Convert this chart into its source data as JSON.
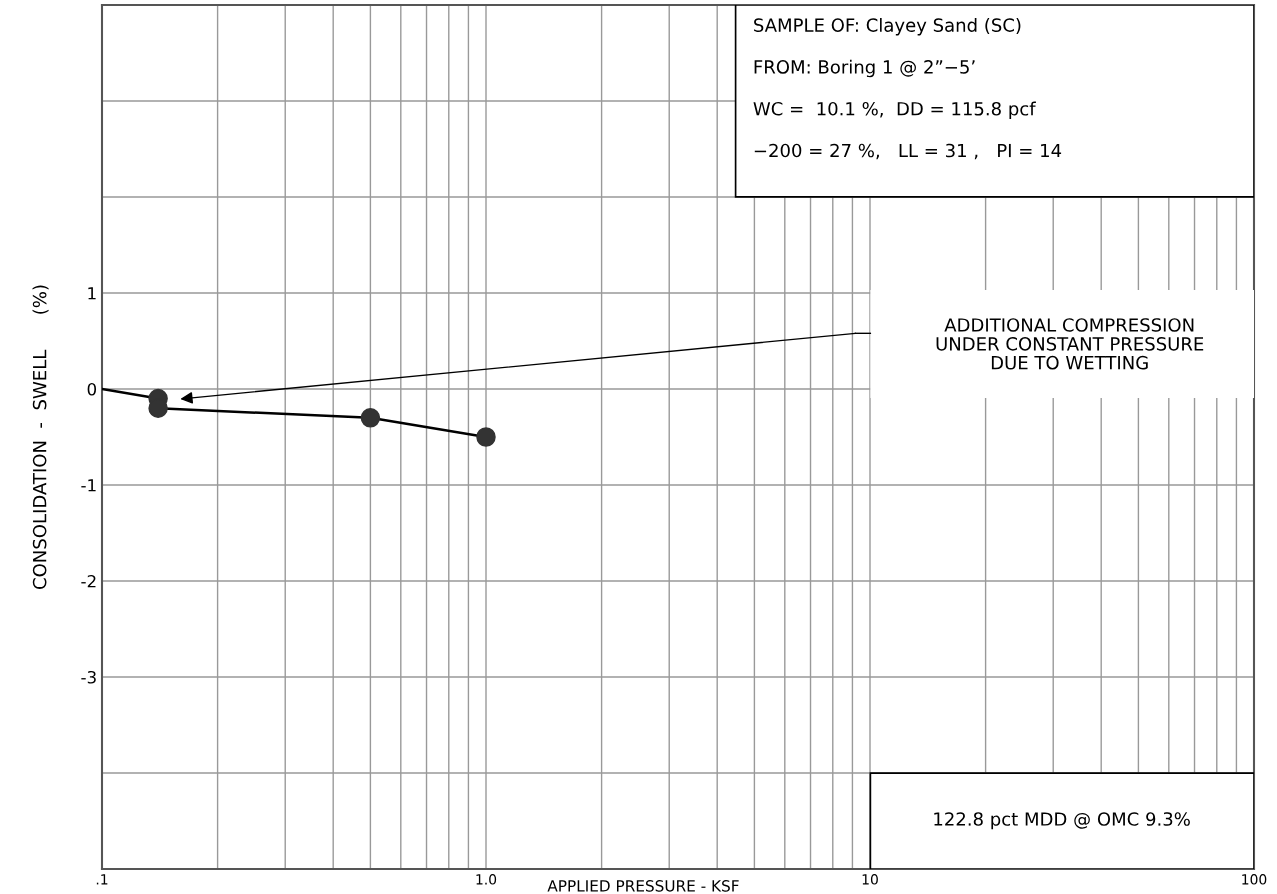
{
  "chart_data": {
    "type": "line",
    "xlabel": "APPLIED PRESSURE - KSF",
    "ylabel": "CONSOLIDATION  -  SWELL      (%)",
    "log": "x",
    "xlim": [
      0.1,
      100
    ],
    "xticks": [
      {
        "value": 0.1,
        "label": ".1"
      },
      {
        "value": 1,
        "label": "1.0"
      },
      10,
      100
    ],
    "ylim": [
      -5,
      4
    ],
    "yticks": [
      {
        "value": -5,
        "label": null
      },
      {
        "value": -4,
        "label": null
      },
      -3,
      -2,
      -1,
      0,
      1,
      {
        "value": 2,
        "label": null
      },
      {
        "value": 3,
        "label": null
      },
      {
        "value": 4,
        "label": null
      }
    ],
    "grid": true,
    "series": [
      {
        "color": "#000000",
        "marker": "none",
        "x": [
          0.1,
          0.14,
          0.14,
          0.5,
          1.0
        ],
        "values": [
          0,
          -0.1,
          -0.2,
          -0.3,
          -0.5
        ]
      },
      {
        "type": "scatter",
        "color": "#333333",
        "marker": "circle",
        "x": [
          0.14,
          0.14,
          0.5,
          1.0
        ],
        "values": [
          -0.1,
          -0.2,
          -0.3,
          -0.5
        ]
      }
    ],
    "annotations": [
      "SAMPLE OF: Clayey Sand (SC)\n\nFROM: Boring 1 @ 2”−5’\n\nWC =  10.1 %,  DD = 115.8 pcf\n\n−200 = 27 %,   LL = 31 ,   PI = 14",
      "122.8 pct MDD @ OMC 9.3%",
      "ADDITIONAL COMPRESSION\nUNDER CONSTANT PRESSURE\nDUE TO WETTING"
    ]
  }
}
